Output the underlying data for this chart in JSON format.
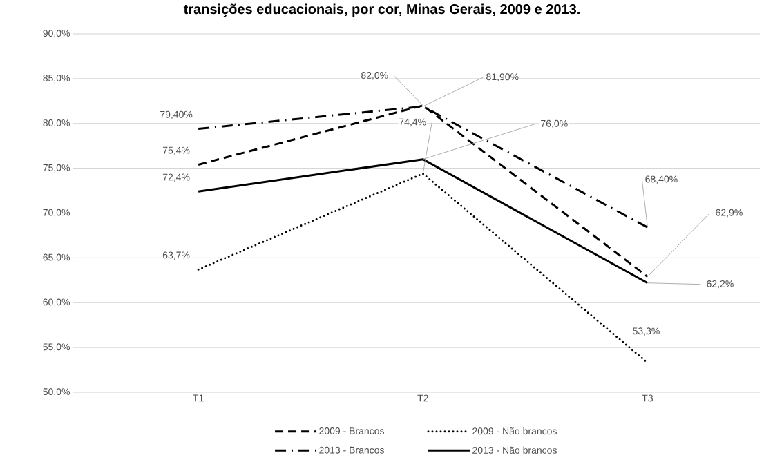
{
  "chart_data": {
    "type": "line",
    "title": "transições educacionais, por cor, Minas Gerais, 2009 e 2013.",
    "categories": [
      "T1",
      "T2",
      "T3"
    ],
    "series": [
      {
        "name": "2009 - Brancos",
        "color": "#000000",
        "line_style": "dashed",
        "values": [
          75.4,
          82.0,
          62.9
        ],
        "value_labels": [
          "75,4%",
          "82,0%",
          "62,9%"
        ]
      },
      {
        "name": "2009 - Não brancos",
        "color": "#000000",
        "line_style": "dotted",
        "values": [
          63.7,
          74.4,
          53.3
        ],
        "value_labels": [
          "63,7%",
          "74,4%",
          "53,3%"
        ]
      },
      {
        "name": "2013 - Brancos",
        "color": "#000000",
        "line_style": "dashdot",
        "values": [
          79.4,
          81.9,
          68.4
        ],
        "value_labels": [
          "79,40%",
          "81,90%",
          "68,40%"
        ]
      },
      {
        "name": "2013 - Não brancos",
        "color": "#000000",
        "line_style": "solid",
        "values": [
          72.4,
          76.0,
          62.2
        ],
        "value_labels": [
          "72,4%",
          "76,0%",
          "62,2%"
        ]
      }
    ],
    "ylim": [
      50,
      90
    ],
    "yticks": [
      {
        "value": 50,
        "label": "50,0%"
      },
      {
        "value": 55,
        "label": "55,0%"
      },
      {
        "value": 60,
        "label": "60,0%"
      },
      {
        "value": 65,
        "label": "65,0%"
      },
      {
        "value": 70,
        "label": "70,0%"
      },
      {
        "value": 75,
        "label": "75,0%"
      },
      {
        "value": 80,
        "label": "80,0%"
      },
      {
        "value": 85,
        "label": "85,0%"
      },
      {
        "value": 90,
        "label": "90,0%"
      }
    ],
    "grid": "y",
    "legend": "bottom",
    "marker": "none"
  }
}
